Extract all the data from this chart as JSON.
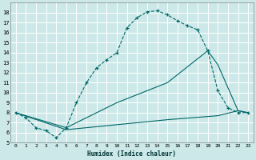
{
  "xlabel": "Humidex (Indice chaleur)",
  "bg_color": "#cce8e8",
  "grid_color": "#ffffff",
  "line_color": "#006868",
  "xlim": [
    -0.5,
    23.5
  ],
  "ylim": [
    5,
    19
  ],
  "xtick_labels": [
    "0",
    "1",
    "2",
    "3",
    "4",
    "5",
    "6",
    "7",
    "8",
    "9",
    "10",
    "11",
    "12",
    "13",
    "14",
    "15",
    "16",
    "17",
    "18",
    "19",
    "20",
    "21",
    "22",
    "23"
  ],
  "xtick_vals": [
    0,
    1,
    2,
    3,
    4,
    5,
    6,
    7,
    8,
    9,
    10,
    11,
    12,
    13,
    14,
    15,
    16,
    17,
    18,
    19,
    20,
    21,
    22,
    23
  ],
  "ytick_vals": [
    5,
    6,
    7,
    8,
    9,
    10,
    11,
    12,
    13,
    14,
    15,
    16,
    17,
    18
  ],
  "line1_x": [
    0,
    1,
    2,
    3,
    4,
    5,
    6,
    7,
    8,
    9,
    10,
    11,
    12,
    13,
    14,
    15,
    16,
    17,
    18,
    19,
    20,
    21,
    22,
    23
  ],
  "line1_y": [
    8.0,
    7.5,
    6.5,
    6.2,
    5.5,
    6.5,
    9.0,
    11.0,
    12.5,
    13.3,
    14.0,
    16.5,
    17.5,
    18.1,
    18.2,
    17.8,
    17.2,
    16.7,
    16.3,
    14.2,
    10.2,
    8.5,
    8.0,
    8.0
  ],
  "line2_x": [
    0,
    5,
    10,
    15,
    19,
    20,
    22,
    23
  ],
  "line2_y": [
    8.0,
    6.5,
    9.0,
    11.0,
    14.2,
    12.8,
    8.2,
    8.0
  ],
  "line3_x": [
    0,
    5,
    10,
    15,
    20,
    22,
    23
  ],
  "line3_y": [
    8.0,
    6.3,
    6.8,
    7.3,
    7.7,
    8.2,
    8.0
  ]
}
